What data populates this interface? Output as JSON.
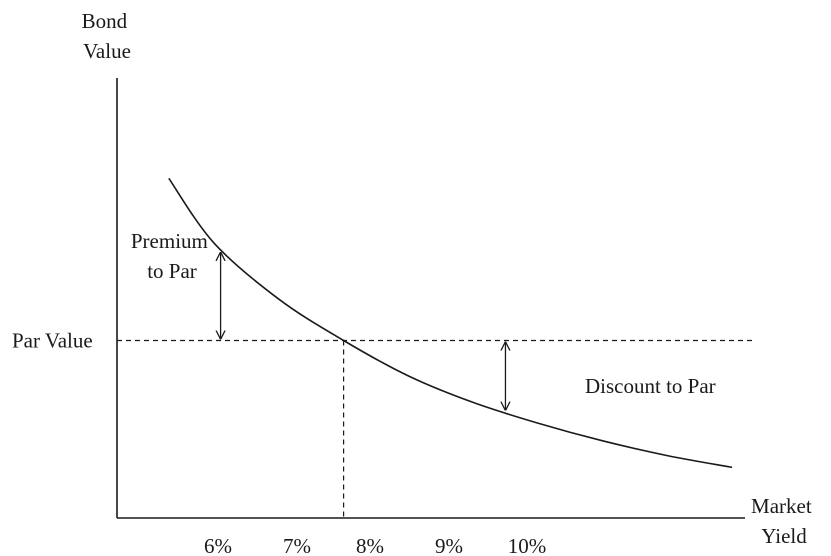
{
  "chart_data": {
    "type": "line",
    "title": "",
    "ylabel": [
      "Bond",
      "Value"
    ],
    "xlabel": [
      "Market",
      "Yield"
    ],
    "x_ticks": [
      "6%",
      "7%",
      "8%",
      "9%",
      "10%"
    ],
    "par_label": "Par Value",
    "premium_label": [
      "Premium",
      "to Par"
    ],
    "discount_label": "Discount to Par",
    "xlim": [
      4.5,
      14.2
    ],
    "ylim": [
      0,
      1
    ],
    "par_level": 0.5,
    "par_yield": 8,
    "premium_arrow_x": 6.1,
    "discount_arrow_x": 10.5,
    "series": [
      {
        "values": [
          {
            "x": 5.3,
            "y": 1.05
          },
          {
            "x": 6.0,
            "y": 0.83
          },
          {
            "x": 7.0,
            "y": 0.64
          },
          {
            "x": 8.0,
            "y": 0.5
          },
          {
            "x": 9.0,
            "y": 0.38
          },
          {
            "x": 10.0,
            "y": 0.29
          },
          {
            "x": 11.0,
            "y": 0.22
          },
          {
            "x": 12.0,
            "y": 0.16
          },
          {
            "x": 13.0,
            "y": 0.11
          },
          {
            "x": 14.0,
            "y": 0.07
          }
        ]
      }
    ]
  }
}
